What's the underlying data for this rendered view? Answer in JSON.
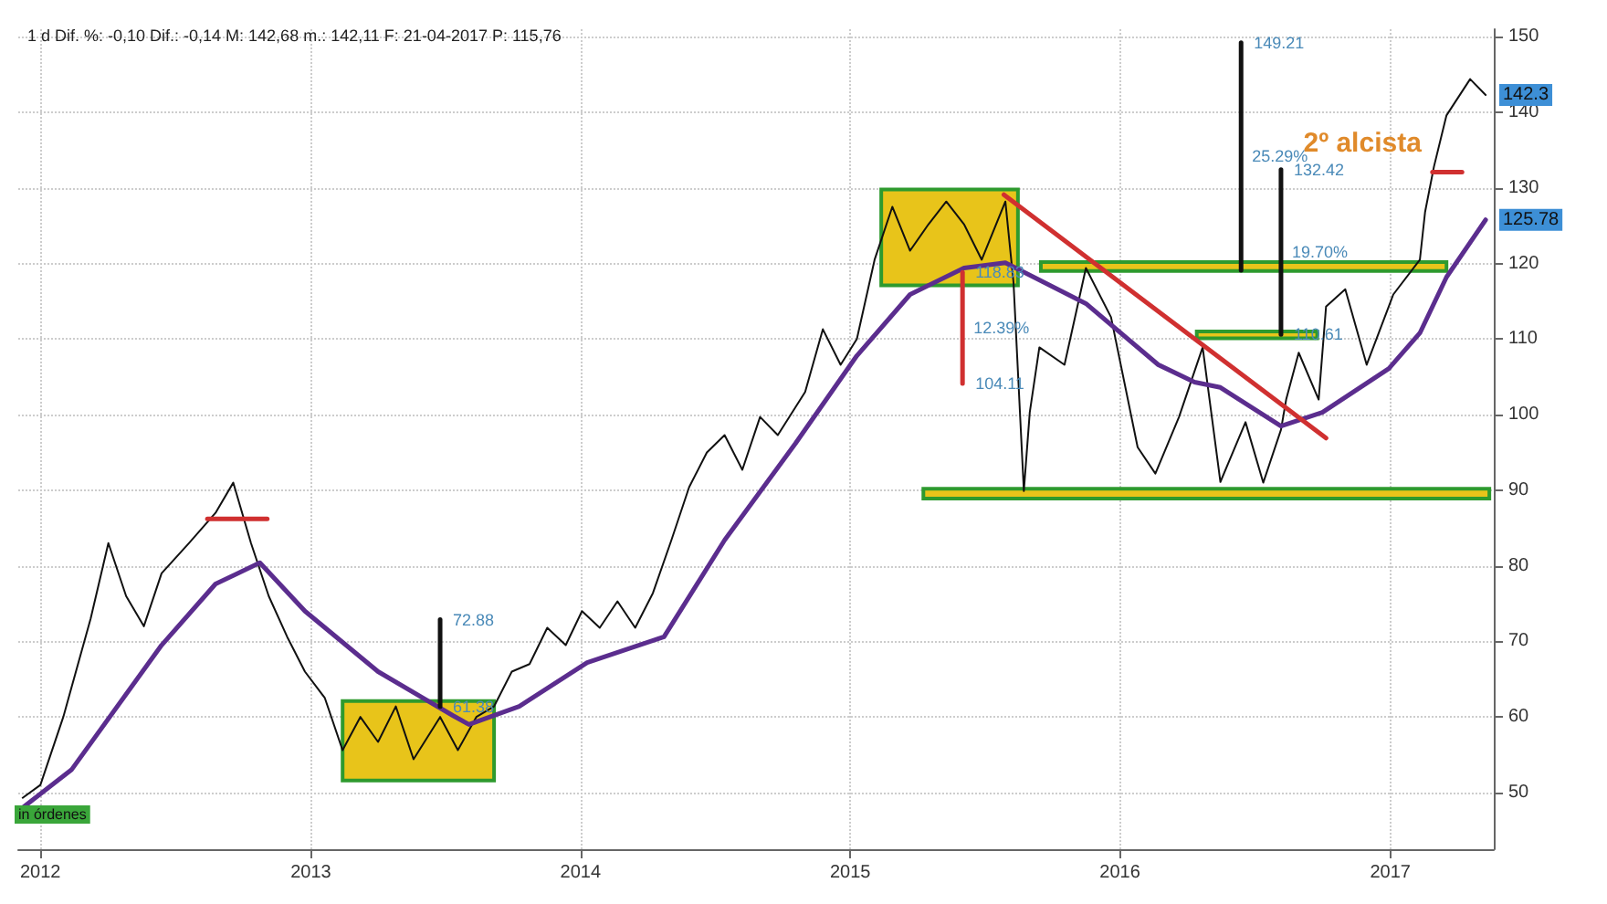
{
  "chart_data": {
    "type": "line",
    "title": "1 d Dif. %: -0,10 Dif.: -0,14 M: 142,68 m.: 142,11 F: 21-04-2017 P: 115,76",
    "xlim": [
      "2011-12-02",
      "2017-05-21"
    ],
    "xticks": [
      {
        "value": "2012-01-01",
        "label": "2012"
      },
      {
        "value": "2013-01-01",
        "label": "2013"
      },
      {
        "value": "2014-01-01",
        "label": "2014"
      },
      {
        "value": "2015-01-01",
        "label": "2015"
      },
      {
        "value": "2016-01-01",
        "label": "2016"
      },
      {
        "value": "2017-01-01",
        "label": "2017"
      }
    ],
    "ylim": [
      42.5,
      151
    ],
    "yticks": [
      50,
      60,
      70,
      80,
      90,
      100,
      110,
      120,
      130,
      140,
      150
    ],
    "grid": true,
    "marker": "none",
    "line_style": "solid",
    "series": [
      {
        "color": "#e8c41a",
        "x": [
          "2013-02-13",
          "2013-09-06"
        ],
        "lower": [
          51.6,
          51.6
        ],
        "upper": [
          62.1,
          62.1
        ],
        "values": [
          null,
          null
        ]
      },
      {
        "color": "#e8c41a",
        "x": [
          "2015-02-12",
          "2015-08-16"
        ],
        "lower": [
          117.1,
          117.1
        ],
        "upper": [
          129.8,
          129.8
        ],
        "values": [
          null,
          null
        ]
      },
      {
        "color": "#e8c41a",
        "x": [
          "2015-04-10",
          "2017-05-15"
        ],
        "lower": [
          88.9,
          88.9
        ],
        "upper": [
          90.2,
          90.2
        ],
        "values": [
          null,
          null
        ]
      },
      {
        "color": "#e8c41a",
        "x": [
          "2015-09-16",
          "2017-03-18"
        ],
        "lower": [
          119,
          119
        ],
        "upper": [
          120.2,
          120.2
        ],
        "values": [
          null,
          null
        ]
      },
      {
        "color": "#e8c41a",
        "x": [
          "2016-04-14",
          "2016-09-24"
        ],
        "lower": [
          110.1,
          110.1
        ],
        "upper": [
          111,
          111
        ],
        "values": [
          null,
          null
        ]
      },
      {
        "color": "#111111",
        "x": [
          "2011-12-08",
          "2012-01-01",
          "2012-02-01",
          "2012-03-09",
          "2012-04-02",
          "2012-04-26",
          "2012-05-20",
          "2012-06-13",
          "2012-07-20",
          "2012-08-25",
          "2012-09-18",
          "2012-10-12",
          "2012-11-05",
          "2012-11-30",
          "2012-12-24",
          "2013-01-20",
          "2013-02-13",
          "2013-03-09",
          "2013-04-02",
          "2013-04-26",
          "2013-05-20",
          "2013-06-25",
          "2013-07-19",
          "2013-08-13",
          "2013-09-06",
          "2013-09-30",
          "2013-10-24",
          "2013-11-17",
          "2013-12-12",
          "2014-01-03",
          "2014-01-27",
          "2014-02-20",
          "2014-03-16",
          "2014-04-09",
          "2014-05-04",
          "2014-05-28",
          "2014-06-21",
          "2014-07-15",
          "2014-08-08",
          "2014-09-01",
          "2014-09-25",
          "2014-11-01",
          "2014-11-25",
          "2014-12-19",
          "2015-01-10",
          "2015-02-03",
          "2015-02-27",
          "2015-03-23",
          "2015-04-17",
          "2015-05-11",
          "2015-06-04",
          "2015-06-28",
          "2015-07-30",
          "2015-08-10",
          "2015-08-24",
          "2015-09-01",
          "2015-09-14",
          "2015-10-18",
          "2015-11-16",
          "2015-12-20",
          "2016-01-25",
          "2016-02-18",
          "2016-03-21",
          "2016-04-22",
          "2016-05-16",
          "2016-06-19",
          "2016-07-13",
          "2016-08-06",
          "2016-08-13",
          "2016-08-30",
          "2016-09-26",
          "2016-10-06",
          "2016-11-01",
          "2016-11-30",
          "2017-01-05",
          "2017-02-10",
          "2017-02-17",
          "2017-03-01",
          "2017-03-18",
          "2017-04-19",
          "2017-05-10"
        ],
        "values": [
          49.3,
          51,
          60,
          73,
          83,
          76,
          72,
          79,
          83,
          87,
          91,
          83,
          76,
          70.6,
          66,
          62.5,
          55.6,
          60,
          56.7,
          61.4,
          54.4,
          60,
          55.6,
          60,
          61.4,
          66,
          67,
          71.8,
          69.5,
          74,
          71.8,
          75.3,
          71.8,
          76.4,
          83.4,
          90.4,
          95,
          97.3,
          92.7,
          99.7,
          97.3,
          103,
          111.3,
          106.6,
          110,
          120.5,
          127.5,
          121.7,
          125.2,
          128.2,
          125.2,
          120.5,
          128.2,
          117.5,
          89.9,
          100.3,
          108.9,
          106.6,
          119.4,
          112.9,
          95.7,
          92.2,
          99.7,
          108.9,
          91.1,
          99,
          91,
          98,
          102,
          108.2,
          102,
          114.3,
          116.6,
          106.6,
          115.9,
          120.5,
          126.8,
          132.8,
          139.6,
          144.4,
          142.3
        ]
      },
      {
        "color": "#5b2d8e",
        "x": [
          "2011-12-08",
          "2012-02-12",
          "2012-06-13",
          "2012-08-25",
          "2012-10-24",
          "2012-12-24",
          "2013-04-02",
          "2013-07-12",
          "2013-08-03",
          "2013-10-10",
          "2014-01-10",
          "2014-04-24",
          "2014-07-15",
          "2014-10-19",
          "2015-01-10",
          "2015-03-23",
          "2015-06-04",
          "2015-07-30",
          "2015-11-16",
          "2016-02-22",
          "2016-04-11",
          "2016-05-16",
          "2016-08-06",
          "2016-10-01",
          "2016-12-30",
          "2017-02-10",
          "2017-03-18",
          "2017-05-10"
        ],
        "values": [
          48,
          53,
          69.5,
          77.6,
          80.4,
          74,
          66,
          60.2,
          59,
          61.4,
          67.2,
          70.6,
          83.4,
          96.2,
          107.8,
          115.9,
          119.4,
          120.1,
          114.7,
          106.6,
          104.3,
          103.6,
          98.5,
          100.3,
          106.1,
          110.8,
          118.2,
          125.78
        ]
      },
      {
        "color": "#d03030",
        "x": [
          "2015-07-28",
          "2016-10-06"
        ],
        "values": [
          129.1,
          96.9
        ]
      },
      {
        "color": "#d03030",
        "x": [
          "2012-08-14",
          "2012-11-03"
        ],
        "values": [
          86.2,
          86.2
        ]
      },
      {
        "name": "2º alcista",
        "color": "#d03030",
        "x": [
          "2017-02-27",
          "2017-04-08"
        ],
        "values": [
          132.1,
          132.1
        ]
      },
      {
        "color": "#111111",
        "x": [
          "2013-06-25",
          "2013-06-25"
        ],
        "values": [
          61.38,
          72.88
        ]
      },
      {
        "name": "25.29%",
        "color": "#111111",
        "x": [
          "2016-06-13",
          "2016-06-13"
        ],
        "values": [
          119.09,
          149.21
        ]
      },
      {
        "name": "19.70%",
        "color": "#111111",
        "x": [
          "2016-08-06",
          "2016-08-06"
        ],
        "values": [
          110.61,
          132.42
        ]
      },
      {
        "name": "12.39%",
        "color": "#d03030",
        "x": [
          "2015-06-02",
          "2015-06-02"
        ],
        "values": [
          118.83,
          104.11
        ]
      }
    ],
    "annotations": [
      {
        "text": "72.88",
        "x": "2013-06-25",
        "y": 72.88
      },
      {
        "text": "61.38",
        "x": "2013-06-25",
        "y": 61.38
      },
      {
        "text": "149.21",
        "x": "2016-06-13",
        "y": 149.21
      },
      {
        "text": "132.42",
        "x": "2016-08-06",
        "y": 132.42
      },
      {
        "text": "110.61",
        "x": "2016-08-06",
        "y": 110.61
      },
      {
        "text": "104.11",
        "x": "2015-06-02",
        "y": 104.11
      },
      {
        "text": "118.83",
        "x": "2015-06-02",
        "y": 118.83
      },
      {
        "text": "142.3",
        "y": 142.3
      },
      {
        "text": "125.78",
        "y": 125.78
      },
      "in órdenes"
    ]
  }
}
